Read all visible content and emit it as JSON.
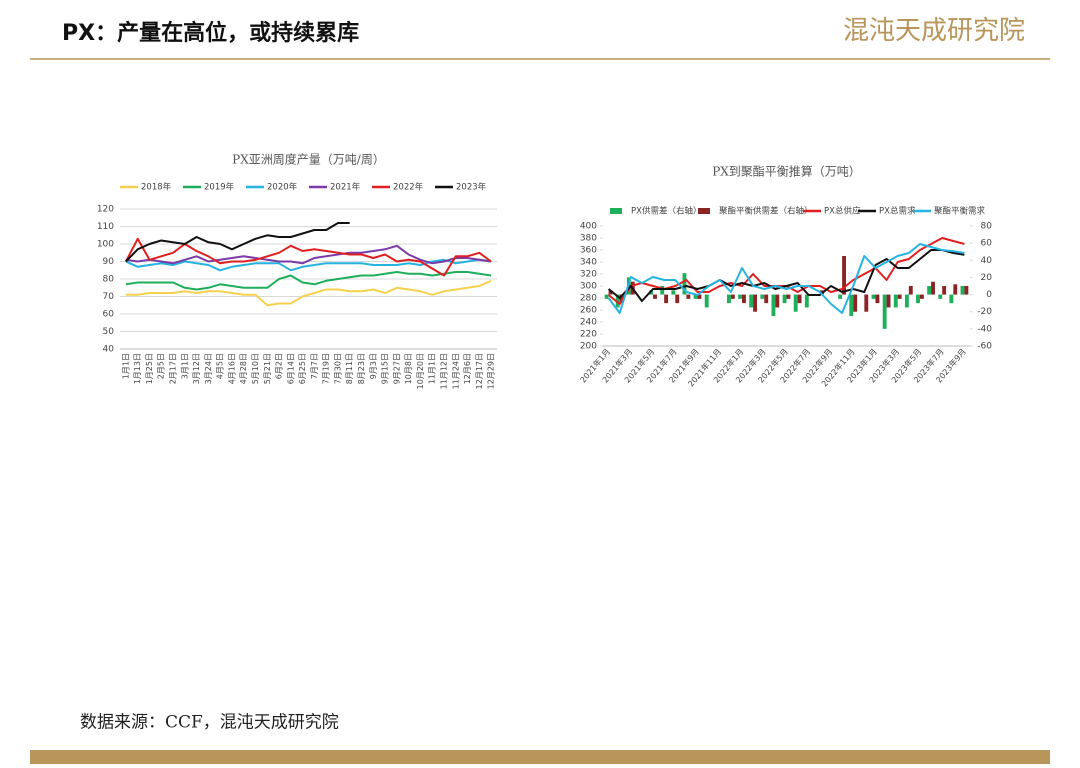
{
  "header": {
    "title": "PX：产量在高位，或持续累库",
    "logo": "混沌天成研究院"
  },
  "footer": {
    "source": "数据来源：CCF，混沌天成研究院"
  },
  "chart_data": [
    {
      "type": "line",
      "title": "PX亚洲周度产量（万吨/周）",
      "grid": true,
      "categories": [
        "1月1日",
        "1月13日",
        "1月25日",
        "2月5日",
        "2月17日",
        "3月1日",
        "3月12日",
        "3月24日",
        "4月5日",
        "4月16日",
        "4月28日",
        "5月10日",
        "5月21日",
        "6月2日",
        "6月14日",
        "6月25日",
        "7月7日",
        "7月19日",
        "7月30日",
        "8月11日",
        "8月23日",
        "9月3日",
        "9月15日",
        "9月27日",
        "10月8日",
        "10月20日",
        "11月1日",
        "11月12日",
        "11月24日",
        "12月6日",
        "12月17日",
        "12月29日"
      ],
      "ylim": [
        40,
        120
      ],
      "yticks": [
        40,
        50,
        60,
        70,
        80,
        90,
        100,
        110,
        120
      ],
      "series": [
        {
          "name": "2018年",
          "color": "#f5d14f",
          "values": [
            71,
            71,
            72,
            72,
            72,
            73,
            72,
            73,
            73,
            72,
            71,
            71,
            65,
            66,
            66,
            70,
            72,
            74,
            74,
            73,
            73,
            74,
            72,
            75,
            74,
            73,
            71,
            73,
            74,
            75,
            76,
            79
          ]
        },
        {
          "name": "2019年",
          "color": "#1fae5a",
          "values": [
            77,
            78,
            78,
            78,
            78,
            75,
            74,
            75,
            77,
            76,
            75,
            75,
            75,
            80,
            82,
            78,
            77,
            79,
            80,
            81,
            82,
            82,
            83,
            84,
            83,
            83,
            82,
            83,
            84,
            84,
            83,
            82
          ]
        },
        {
          "name": "2020年",
          "color": "#26b3e0",
          "values": [
            90,
            87,
            88,
            89,
            88,
            90,
            89,
            88,
            85,
            87,
            88,
            89,
            89,
            89,
            85,
            87,
            88,
            89,
            89,
            89,
            89,
            88,
            88,
            88,
            89,
            88,
            90,
            91,
            89,
            90,
            91,
            90
          ]
        },
        {
          "name": "2021年",
          "color": "#7a3aa8",
          "values": [
            91,
            90,
            91,
            90,
            89,
            91,
            93,
            90,
            91,
            92,
            93,
            92,
            91,
            90,
            90,
            89,
            92,
            93,
            94,
            95,
            95,
            96,
            97,
            99,
            94,
            91,
            89,
            90,
            92,
            92,
            91,
            90
          ]
        },
        {
          "name": "2022年",
          "color": "#e02020",
          "values": [
            90,
            103,
            91,
            93,
            95,
            100,
            96,
            93,
            89,
            90,
            90,
            91,
            93,
            95,
            99,
            96,
            97,
            96,
            95,
            94,
            94,
            92,
            94,
            90,
            91,
            90,
            86,
            82,
            93,
            93,
            95,
            90
          ]
        },
        {
          "name": "2023年",
          "color": "#111111",
          "values": [
            90,
            97,
            100,
            102,
            101,
            100,
            104,
            101,
            100,
            97,
            100,
            103,
            105,
            104,
            104,
            106,
            108,
            108,
            112,
            112,
            null,
            null,
            null,
            null,
            null,
            null,
            null,
            null,
            null,
            null,
            null,
            null
          ]
        }
      ]
    },
    {
      "type": "combo",
      "title": "PX到聚酯平衡推算（万吨）",
      "grid": false,
      "categories": [
        "2021年1月",
        null,
        "2021年3月",
        null,
        "2021年5月",
        null,
        "2021年7月",
        null,
        "2021年9月",
        null,
        "2021年11月",
        null,
        "2022年1月",
        null,
        "2022年3月",
        null,
        "2022年5月",
        null,
        "2022年7月",
        null,
        "2022年9月",
        null,
        "2022年11月",
        null,
        "2023年1月",
        null,
        "2023年3月",
        null,
        "2023年5月",
        null,
        "2023年7月",
        null,
        "2023年9月"
      ],
      "ylim": [
        200,
        400
      ],
      "yticks": [
        200,
        220,
        240,
        260,
        280,
        300,
        320,
        340,
        360,
        380,
        400
      ],
      "y2lim": [
        -60,
        80
      ],
      "y2ticks": [
        -60,
        -40,
        -20,
        0,
        20,
        40,
        60,
        80
      ],
      "series": [
        {
          "name": "PX供需差（右轴）",
          "type": "bar",
          "axis": "y2",
          "color": "#1fae5a",
          "values": [
            -5,
            -15,
            20,
            0,
            5,
            10,
            5,
            25,
            -5,
            -15,
            0,
            -10,
            -5,
            -15,
            -5,
            -25,
            -10,
            -20,
            -15,
            0,
            0,
            -5,
            -25,
            0,
            -5,
            -40,
            -15,
            -15,
            -10,
            10,
            -5,
            -10,
            10
          ]
        },
        {
          "name": "聚酯平衡供需差（右轴）",
          "type": "bar",
          "axis": "y2",
          "color": "#8b2525",
          "values": [
            5,
            -10,
            15,
            0,
            -5,
            -10,
            -10,
            -5,
            -5,
            0,
            0,
            -5,
            -10,
            -20,
            -10,
            -15,
            -5,
            -10,
            0,
            5,
            0,
            45,
            -20,
            -20,
            -10,
            -15,
            -5,
            10,
            -5,
            15,
            10,
            12,
            10
          ]
        },
        {
          "name": "PX总供应",
          "type": "line",
          "color": "#e02020",
          "values": [
            285,
            270,
            300,
            305,
            300,
            295,
            300,
            310,
            290,
            290,
            300,
            305,
            300,
            320,
            300,
            300,
            300,
            290,
            300,
            300,
            290,
            295,
            310,
            320,
            330,
            310,
            340,
            345,
            360,
            370,
            380,
            375,
            370
          ]
        },
        {
          "name": "PX总需求",
          "type": "line",
          "color": "#111111",
          "values": [
            295,
            280,
            300,
            275,
            295,
            295,
            295,
            300,
            295,
            300,
            310,
            300,
            305,
            300,
            305,
            295,
            300,
            305,
            285,
            285,
            300,
            290,
            295,
            290,
            335,
            345,
            330,
            330,
            345,
            360,
            360,
            355,
            352
          ]
        },
        {
          "name": "聚酯平衡需求",
          "type": "line",
          "color": "#26b3e0",
          "values": [
            280,
            255,
            315,
            305,
            315,
            310,
            310,
            290,
            285,
            300,
            310,
            290,
            330,
            300,
            295,
            300,
            295,
            300,
            300,
            290,
            270,
            255,
            300,
            350,
            330,
            340,
            350,
            355,
            370,
            365,
            360,
            358,
            355
          ]
        }
      ]
    }
  ]
}
